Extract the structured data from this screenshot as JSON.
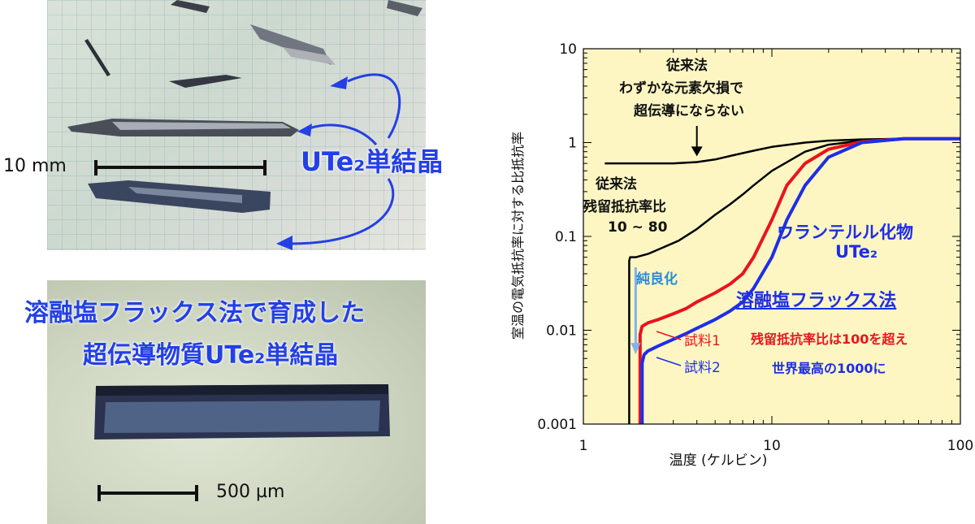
{
  "top_photo": {
    "label": "UTe₂単結晶",
    "scale": "10 mm"
  },
  "bottom_photo": {
    "title_line1": "溶融塩フラックス法で育成した",
    "title_line2": "超伝導物質UTe₂単結晶",
    "scale": "500 µm"
  },
  "chart_data": {
    "type": "line",
    "xlabel": "温度 (ケルビン)",
    "ylabel": "室温の電気抵抗率に対する比抵抗率",
    "x_scale": "log",
    "y_scale": "log",
    "xlim": [
      1,
      100
    ],
    "ylim": [
      0.001,
      10
    ],
    "x_ticks": [
      "1",
      "10",
      "100"
    ],
    "y_ticks": [
      "0.001",
      "0.01",
      "0.1",
      "1",
      "10"
    ],
    "background_color": "#fdf6c3",
    "series": [
      {
        "name": "",
        "color": "#000000",
        "x": [
          1.3,
          2.0,
          3.0,
          4.0,
          5.0,
          6.0,
          8.0,
          10.0,
          15.0,
          20.0,
          30.0,
          50.0,
          100.0
        ],
        "y": [
          0.6,
          0.6,
          0.6,
          0.62,
          0.66,
          0.72,
          0.82,
          0.9,
          1.0,
          1.05,
          1.08,
          1.1,
          1.1
        ]
      },
      {
        "name": "",
        "color": "#000000",
        "x": [
          1.75,
          1.75,
          1.77,
          1.9,
          2.2,
          2.6,
          3.2,
          4.0,
          5.0,
          6.0,
          7.0,
          8.0,
          10.0,
          15.0,
          20.0,
          30.0,
          50.0,
          100.0
        ],
        "y": [
          0.001,
          0.055,
          0.06,
          0.06,
          0.065,
          0.075,
          0.09,
          0.12,
          0.17,
          0.22,
          0.28,
          0.35,
          0.5,
          0.8,
          0.95,
          1.05,
          1.1,
          1.1
        ]
      },
      {
        "name": "試料1",
        "color": "#e8141e",
        "x": [
          2.0,
          2.0,
          2.05,
          2.2,
          2.5,
          3.0,
          3.5,
          4.0,
          5.0,
          6.0,
          7.0,
          8.0,
          10.0,
          12.0,
          15.0,
          20.0,
          30.0,
          50.0,
          100.0
        ],
        "y": [
          0.001,
          0.009,
          0.011,
          0.012,
          0.013,
          0.015,
          0.017,
          0.02,
          0.025,
          0.031,
          0.04,
          0.06,
          0.15,
          0.35,
          0.6,
          0.85,
          1.02,
          1.1,
          1.1
        ]
      },
      {
        "name": "試料2",
        "color": "#1e2ee6",
        "x": [
          2.05,
          2.05,
          2.1,
          2.2,
          2.5,
          3.0,
          3.5,
          4.0,
          5.0,
          6.0,
          7.0,
          8.0,
          10.0,
          12.0,
          15.0,
          20.0,
          30.0,
          50.0,
          100.0
        ],
        "y": [
          0.001,
          0.0045,
          0.0055,
          0.006,
          0.0068,
          0.008,
          0.0092,
          0.0105,
          0.013,
          0.016,
          0.02,
          0.028,
          0.06,
          0.15,
          0.35,
          0.7,
          1.0,
          1.1,
          1.1
        ]
      }
    ],
    "annotations": {
      "conventional_1": [
        "従来法",
        "わずかな元素欠損で",
        "超伝導にならない"
      ],
      "conventional_2": [
        "従来法",
        "残留抵抗率比",
        "10 ~ 80"
      ],
      "purify": "純良化",
      "compound": [
        "ウランテルル化物",
        "UTe₂"
      ],
      "method": "溶融塩フラックス法",
      "sample1": "試料1",
      "sample2": "試料2",
      "rrr_red": "残留抵抗率比は100を超え",
      "rrr_blue": "世界最高の1000に"
    }
  }
}
